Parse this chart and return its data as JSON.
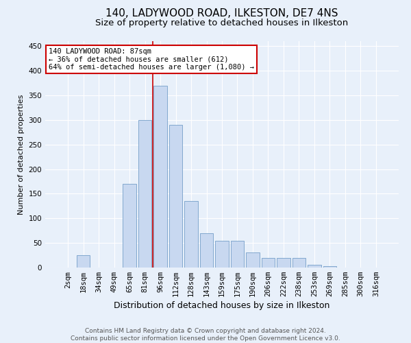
{
  "title": "140, LADYWOOD ROAD, ILKESTON, DE7 4NS",
  "subtitle": "Size of property relative to detached houses in Ilkeston",
  "xlabel": "Distribution of detached houses by size in Ilkeston",
  "ylabel": "Number of detached properties",
  "categories": [
    "2sqm",
    "18sqm",
    "34sqm",
    "49sqm",
    "65sqm",
    "81sqm",
    "96sqm",
    "112sqm",
    "128sqm",
    "143sqm",
    "159sqm",
    "175sqm",
    "190sqm",
    "206sqm",
    "222sqm",
    "238sqm",
    "253sqm",
    "269sqm",
    "285sqm",
    "300sqm",
    "316sqm"
  ],
  "values": [
    0,
    25,
    0,
    0,
    170,
    300,
    370,
    290,
    135,
    70,
    55,
    55,
    30,
    20,
    20,
    20,
    5,
    3,
    0,
    0,
    0
  ],
  "bar_color": "#c8d8f0",
  "bar_edge_color": "#6090c0",
  "highlight_index": 5,
  "highlight_line_color": "#cc0000",
  "annotation_text": "140 LADYWOOD ROAD: 87sqm\n← 36% of detached houses are smaller (612)\n64% of semi-detached houses are larger (1,080) →",
  "annotation_box_facecolor": "#ffffff",
  "annotation_box_edgecolor": "#cc0000",
  "bg_color": "#e8f0fa",
  "plot_bg_color": "#e8f0fa",
  "grid_color": "#ffffff",
  "ylim": [
    0,
    460
  ],
  "yticks": [
    0,
    50,
    100,
    150,
    200,
    250,
    300,
    350,
    400,
    450
  ],
  "footer_line1": "Contains HM Land Registry data © Crown copyright and database right 2024.",
  "footer_line2": "Contains public sector information licensed under the Open Government Licence v3.0.",
  "title_fontsize": 11,
  "subtitle_fontsize": 9.5,
  "xlabel_fontsize": 9,
  "ylabel_fontsize": 8,
  "tick_fontsize": 7.5,
  "footer_fontsize": 6.5,
  "ann_fontsize": 7.5
}
